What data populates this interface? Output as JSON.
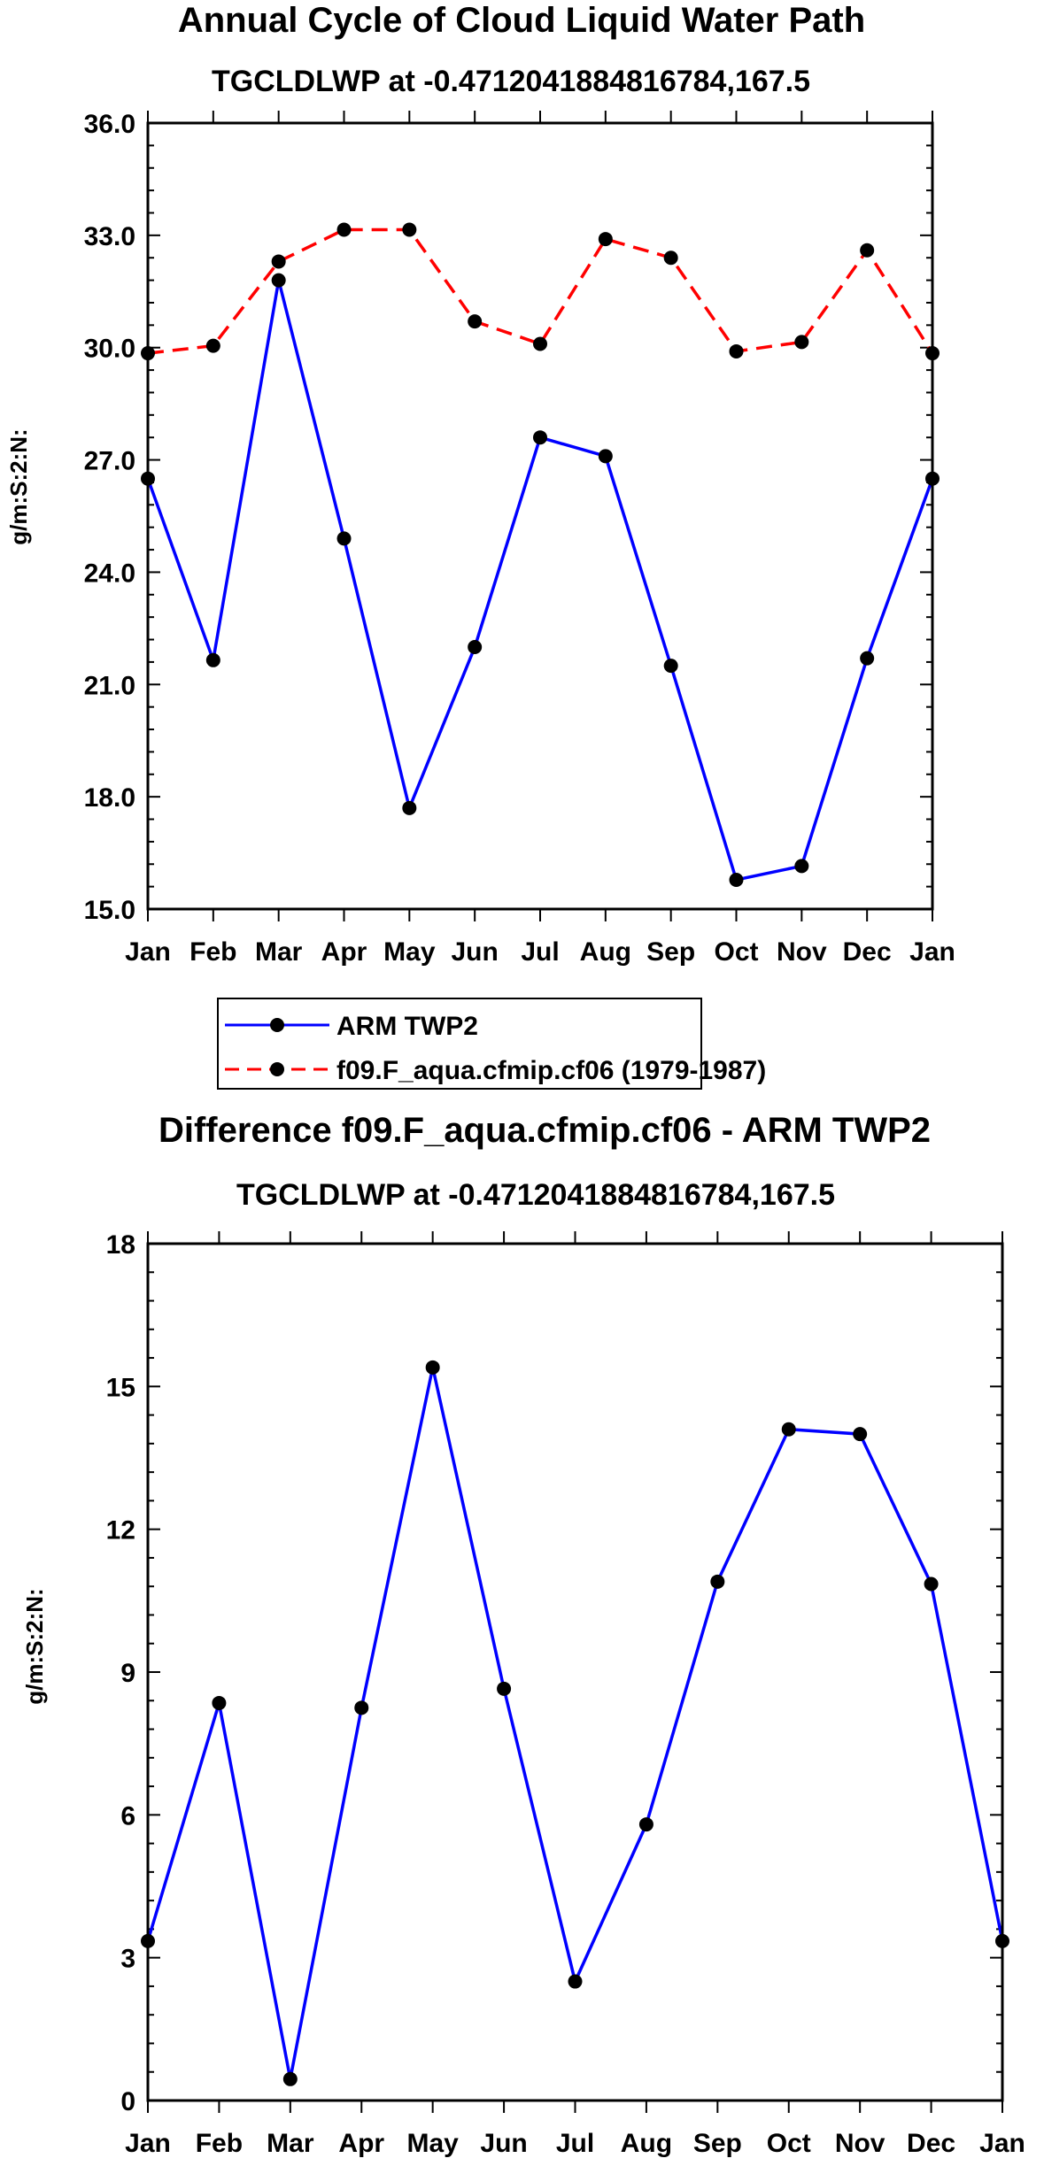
{
  "chart_data": [
    {
      "type": "line",
      "title": "Annual Cycle of Cloud Liquid Water Path",
      "subtitle": "TGCLDLWP at -0.4712041884816784,167.5",
      "ylabel": "g/m:S:2:N:",
      "xlabel": "",
      "categories": [
        "Jan",
        "Feb",
        "Mar",
        "Apr",
        "May",
        "Jun",
        "Jul",
        "Aug",
        "Sep",
        "Oct",
        "Nov",
        "Dec",
        "Jan"
      ],
      "ylim": [
        15.0,
        36.0
      ],
      "yticks": [
        15.0,
        18.0,
        21.0,
        24.0,
        27.0,
        30.0,
        33.0,
        36.0
      ],
      "ytick_labels": [
        "15.0",
        "18.0",
        "21.0",
        "24.0",
        "27.0",
        "30.0",
        "33.0",
        "36.0"
      ],
      "legend_position": "below",
      "series": [
        {
          "name": "ARM TWP2",
          "color": "#0000ff",
          "dash": "solid",
          "values": [
            26.5,
            21.65,
            31.8,
            24.9,
            17.7,
            22.0,
            27.6,
            27.1,
            21.5,
            15.78,
            16.15,
            21.7,
            26.5
          ]
        },
        {
          "name": "f09.F_aqua.cfmip.cf06 (1979-1987)",
          "color": "#ff0000",
          "dash": "dashed",
          "values": [
            29.85,
            30.05,
            32.3,
            33.15,
            33.15,
            30.7,
            30.1,
            32.9,
            32.4,
            29.9,
            30.15,
            32.6,
            29.85
          ]
        }
      ]
    },
    {
      "type": "line",
      "title": "Difference f09.F_aqua.cfmip.cf06 - ARM TWP2",
      "subtitle": "TGCLDLWP at -0.4712041884816784,167.5",
      "ylabel": "g/m:S:2:N:",
      "xlabel": "",
      "categories": [
        "Jan",
        "Feb",
        "Mar",
        "Apr",
        "May",
        "Jun",
        "Jul",
        "Aug",
        "Sep",
        "Oct",
        "Nov",
        "Dec",
        "Jan"
      ],
      "ylim": [
        0,
        18
      ],
      "yticks": [
        0,
        3,
        6,
        9,
        12,
        15,
        18
      ],
      "ytick_labels": [
        "0",
        "3",
        "6",
        "9",
        "12",
        "15",
        "18"
      ],
      "series": [
        {
          "name": "Difference",
          "color": "#0000ff",
          "dash": "solid",
          "values": [
            3.35,
            8.35,
            0.45,
            8.25,
            15.4,
            8.65,
            2.5,
            5.8,
            10.9,
            14.1,
            14.0,
            10.85,
            3.35
          ]
        }
      ]
    }
  ]
}
